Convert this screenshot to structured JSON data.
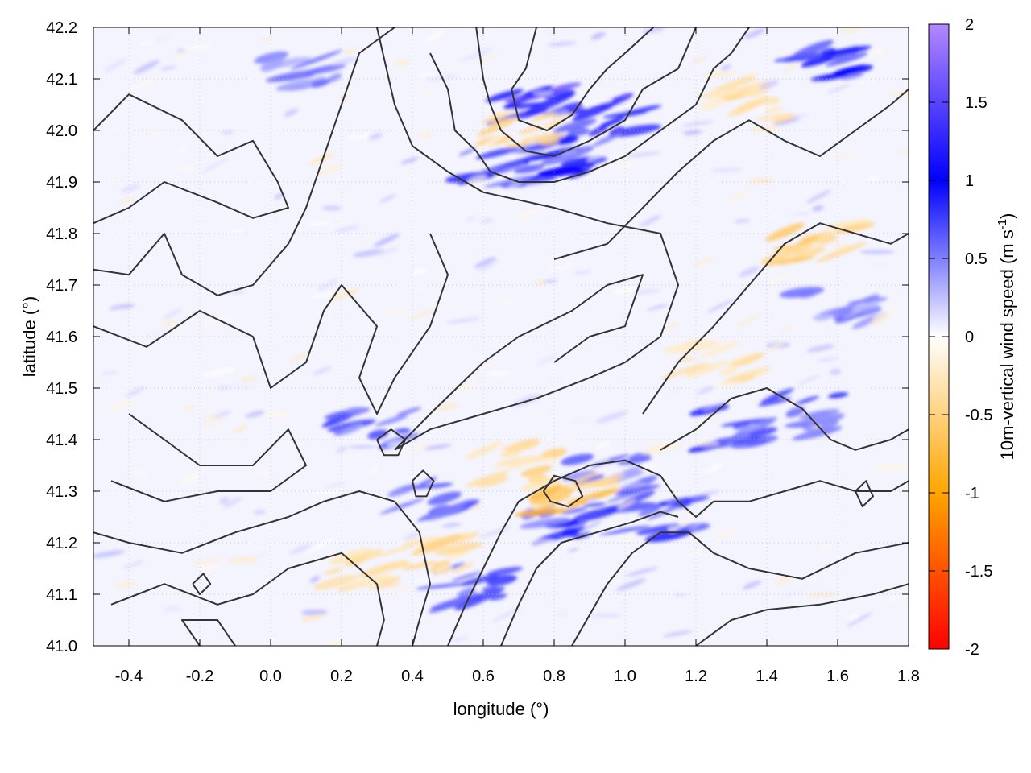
{
  "chart_data": {
    "type": "heatmap",
    "title": "",
    "xlabel": "longitude (°)",
    "ylabel": "latitude (°)",
    "xlim": [
      -0.5,
      1.8
    ],
    "ylim": [
      41.0,
      42.2
    ],
    "x_ticks": [
      -0.4,
      -0.2,
      0.0,
      0.2,
      0.4,
      0.6,
      0.8,
      1.0,
      1.2,
      1.4,
      1.6,
      1.8
    ],
    "x_tick_labels": [
      "-0.4",
      "-0.2",
      "0.0",
      "0.2",
      "0.4",
      "0.6",
      "0.8",
      "1.0",
      "1.2",
      "1.4",
      "1.6",
      "1.8"
    ],
    "y_ticks": [
      41.0,
      41.1,
      41.2,
      41.3,
      41.4,
      41.5,
      41.6,
      41.7,
      41.8,
      41.9,
      42.0,
      42.1,
      42.2
    ],
    "y_tick_labels": [
      "41.0",
      "41.1",
      "41.2",
      "41.3",
      "41.4",
      "41.5",
      "41.6",
      "41.7",
      "41.8",
      "41.9",
      "42.0",
      "42.1",
      "42.2"
    ],
    "grid": true,
    "colorbar": {
      "label": "10m-vertical wind speed (m s-1)",
      "label_text": "10m-vertical wind speed (m s",
      "label_sup": "-1",
      "label_end": ")",
      "range": [
        -2,
        2
      ],
      "ticks": [
        -2,
        -1.5,
        -1,
        -0.5,
        0,
        0.5,
        1,
        1.5,
        2
      ],
      "tick_labels": [
        "-2",
        "-1.5",
        "-1",
        "-0.5",
        "0",
        "0.5",
        "1",
        "1.5",
        "2"
      ],
      "stops": [
        {
          "value": -2,
          "color": "#ff0000"
        },
        {
          "value": -1,
          "color": "#ffa500"
        },
        {
          "value": 0,
          "color": "#ffffff"
        },
        {
          "value": 1,
          "color": "#0000ff"
        },
        {
          "value": 2,
          "color": "#b388ff"
        }
      ]
    },
    "contour_color": "#333333",
    "features": [
      {
        "type": "updraft",
        "lon": 0.75,
        "lat": 42.05,
        "value": 1.6
      },
      {
        "type": "updraft",
        "lon": 0.95,
        "lat": 42.03,
        "value": 1.3
      },
      {
        "type": "updraft",
        "lon": 0.65,
        "lat": 41.93,
        "value": 1.0
      },
      {
        "type": "updraft",
        "lon": 0.85,
        "lat": 41.95,
        "value": 1.1
      },
      {
        "type": "updraft",
        "lon": 1.55,
        "lat": 42.12,
        "value": 1.1
      },
      {
        "type": "updraft",
        "lon": 1.1,
        "lat": 41.25,
        "value": 1.1
      },
      {
        "type": "updraft",
        "lon": 1.3,
        "lat": 41.42,
        "value": 0.9
      },
      {
        "type": "updraft",
        "lon": 1.5,
        "lat": 41.45,
        "value": 0.9
      },
      {
        "type": "updraft",
        "lon": 0.82,
        "lat": 41.24,
        "value": 1.0
      },
      {
        "type": "updraft",
        "lon": 0.45,
        "lat": 41.28,
        "value": 0.8
      },
      {
        "type": "updraft",
        "lon": 0.58,
        "lat": 41.12,
        "value": 0.8
      },
      {
        "type": "updraft",
        "lon": 0.3,
        "lat": 41.42,
        "value": 0.8
      },
      {
        "type": "updraft",
        "lon": 1.6,
        "lat": 41.65,
        "value": 0.6
      },
      {
        "type": "updraft",
        "lon": 0.95,
        "lat": 41.33,
        "value": 0.7
      },
      {
        "type": "updraft",
        "lon": 0.1,
        "lat": 42.12,
        "value": 0.6
      },
      {
        "type": "downdraft",
        "lon": 0.85,
        "lat": 41.29,
        "value": -0.8
      },
      {
        "type": "downdraft",
        "lon": 0.7,
        "lat": 41.35,
        "value": -0.5
      },
      {
        "type": "downdraft",
        "lon": 0.45,
        "lat": 41.18,
        "value": -0.5
      },
      {
        "type": "downdraft",
        "lon": 1.55,
        "lat": 41.78,
        "value": -0.6
      },
      {
        "type": "downdraft",
        "lon": 1.25,
        "lat": 41.55,
        "value": -0.4
      },
      {
        "type": "downdraft",
        "lon": 0.7,
        "lat": 42.0,
        "value": -0.5
      },
      {
        "type": "downdraft",
        "lon": 1.35,
        "lat": 42.05,
        "value": -0.4
      },
      {
        "type": "downdraft",
        "lon": 0.25,
        "lat": 41.15,
        "value": -0.4
      }
    ],
    "contours": [
      [
        [
          -0.5,
          42.0
        ],
        [
          -0.4,
          42.07
        ],
        [
          -0.25,
          42.02
        ],
        [
          -0.15,
          41.95
        ],
        [
          -0.05,
          41.98
        ],
        [
          0.02,
          41.9
        ],
        [
          0.05,
          41.85
        ],
        [
          -0.05,
          41.83
        ],
        [
          -0.15,
          41.86
        ],
        [
          -0.3,
          41.9
        ],
        [
          -0.4,
          41.85
        ],
        [
          -0.5,
          41.82
        ]
      ],
      [
        [
          -0.5,
          41.73
        ],
        [
          -0.4,
          41.72
        ],
        [
          -0.3,
          41.8
        ],
        [
          -0.25,
          41.72
        ],
        [
          -0.15,
          41.68
        ],
        [
          -0.05,
          41.7
        ],
        [
          0.05,
          41.78
        ],
        [
          0.1,
          41.85
        ],
        [
          0.15,
          41.95
        ],
        [
          0.2,
          42.05
        ],
        [
          0.25,
          42.15
        ],
        [
          0.35,
          42.2
        ]
      ],
      [
        [
          -0.5,
          41.62
        ],
        [
          -0.35,
          41.58
        ],
        [
          -0.2,
          41.65
        ],
        [
          -0.05,
          41.6
        ],
        [
          0.0,
          41.5
        ],
        [
          0.1,
          41.55
        ],
        [
          0.15,
          41.65
        ],
        [
          0.2,
          41.7
        ],
        [
          0.3,
          41.62
        ],
        [
          0.25,
          41.52
        ],
        [
          0.3,
          41.45
        ],
        [
          0.35,
          41.52
        ],
        [
          0.45,
          41.62
        ],
        [
          0.5,
          41.72
        ],
        [
          0.45,
          41.8
        ]
      ],
      [
        [
          0.3,
          42.2
        ],
        [
          0.35,
          42.05
        ],
        [
          0.4,
          41.97
        ],
        [
          0.5,
          41.92
        ],
        [
          0.6,
          41.88
        ],
        [
          0.8,
          41.85
        ],
        [
          0.95,
          41.82
        ],
        [
          1.1,
          41.8
        ],
        [
          1.15,
          41.7
        ],
        [
          1.1,
          41.6
        ],
        [
          1.0,
          41.55
        ],
        [
          0.9,
          41.52
        ],
        [
          0.75,
          41.48
        ],
        [
          0.6,
          41.45
        ],
        [
          0.45,
          41.42
        ],
        [
          0.35,
          41.38
        ]
      ],
      [
        [
          0.35,
          41.38
        ],
        [
          0.45,
          41.45
        ],
        [
          0.6,
          41.55
        ],
        [
          0.7,
          41.6
        ],
        [
          0.85,
          41.65
        ],
        [
          0.95,
          41.7
        ],
        [
          1.05,
          41.72
        ],
        [
          1.0,
          41.62
        ],
        [
          0.9,
          41.6
        ],
        [
          0.8,
          41.55
        ]
      ],
      [
        [
          -0.4,
          41.45
        ],
        [
          -0.3,
          41.4
        ],
        [
          -0.2,
          41.35
        ],
        [
          -0.05,
          41.35
        ],
        [
          0.05,
          41.42
        ],
        [
          0.1,
          41.35
        ],
        [
          0.0,
          41.3
        ],
        [
          -0.15,
          41.3
        ],
        [
          -0.3,
          41.28
        ],
        [
          -0.45,
          41.32
        ]
      ],
      [
        [
          -0.5,
          41.22
        ],
        [
          -0.4,
          41.2
        ],
        [
          -0.25,
          41.18
        ],
        [
          -0.1,
          41.22
        ],
        [
          0.05,
          41.25
        ],
        [
          0.15,
          41.28
        ],
        [
          0.25,
          41.3
        ],
        [
          0.35,
          41.28
        ],
        [
          0.42,
          41.22
        ],
        [
          0.45,
          41.12
        ],
        [
          0.42,
          41.05
        ],
        [
          0.4,
          41.0
        ]
      ],
      [
        [
          -0.45,
          41.08
        ],
        [
          -0.3,
          41.12
        ],
        [
          -0.15,
          41.08
        ],
        [
          -0.05,
          41.1
        ],
        [
          0.05,
          41.15
        ],
        [
          0.2,
          41.18
        ],
        [
          0.3,
          41.12
        ],
        [
          0.32,
          41.05
        ],
        [
          0.3,
          41.0
        ]
      ],
      [
        [
          -0.2,
          41.0
        ],
        [
          -0.25,
          41.05
        ],
        [
          -0.15,
          41.05
        ],
        [
          -0.1,
          41.0
        ]
      ],
      [
        [
          0.5,
          41.0
        ],
        [
          0.55,
          41.08
        ],
        [
          0.6,
          41.15
        ],
        [
          0.65,
          41.22
        ],
        [
          0.7,
          41.28
        ],
        [
          0.8,
          41.32
        ],
        [
          0.9,
          41.35
        ],
        [
          1.0,
          41.36
        ],
        [
          1.1,
          41.33
        ],
        [
          1.15,
          41.28
        ],
        [
          1.2,
          41.25
        ],
        [
          1.25,
          41.28
        ],
        [
          1.35,
          41.28
        ],
        [
          1.45,
          41.3
        ],
        [
          1.55,
          41.32
        ],
        [
          1.65,
          41.3
        ],
        [
          1.75,
          41.3
        ],
        [
          1.8,
          41.32
        ]
      ],
      [
        [
          0.65,
          41.0
        ],
        [
          0.7,
          41.08
        ],
        [
          0.75,
          41.15
        ],
        [
          0.82,
          41.2
        ],
        [
          0.92,
          41.22
        ],
        [
          1.02,
          41.24
        ],
        [
          1.1,
          41.26
        ],
        [
          1.15,
          41.25
        ]
      ],
      [
        [
          0.85,
          41.0
        ],
        [
          0.9,
          41.06
        ],
        [
          0.95,
          41.12
        ],
        [
          1.02,
          41.18
        ],
        [
          1.1,
          41.22
        ],
        [
          1.18,
          41.22
        ],
        [
          1.25,
          41.18
        ],
        [
          1.35,
          41.15
        ],
        [
          1.5,
          41.13
        ],
        [
          1.65,
          41.18
        ],
        [
          1.8,
          41.2
        ]
      ],
      [
        [
          1.2,
          41.0
        ],
        [
          1.3,
          41.05
        ],
        [
          1.4,
          41.07
        ],
        [
          1.55,
          41.08
        ],
        [
          1.7,
          41.1
        ],
        [
          1.8,
          41.12
        ]
      ],
      [
        [
          1.05,
          41.45
        ],
        [
          1.15,
          41.55
        ],
        [
          1.25,
          41.62
        ],
        [
          1.35,
          41.7
        ],
        [
          1.45,
          41.78
        ],
        [
          1.55,
          41.82
        ],
        [
          1.65,
          41.8
        ],
        [
          1.75,
          41.78
        ],
        [
          1.8,
          41.8
        ]
      ],
      [
        [
          1.1,
          41.38
        ],
        [
          1.2,
          41.42
        ],
        [
          1.3,
          41.48
        ],
        [
          1.4,
          41.5
        ],
        [
          1.5,
          41.46
        ],
        [
          1.58,
          41.4
        ],
        [
          1.65,
          41.38
        ],
        [
          1.75,
          41.4
        ],
        [
          1.8,
          41.42
        ]
      ],
      [
        [
          0.8,
          41.75
        ],
        [
          0.95,
          41.78
        ],
        [
          1.05,
          41.85
        ],
        [
          1.15,
          41.92
        ],
        [
          1.25,
          41.98
        ],
        [
          1.35,
          42.02
        ],
        [
          1.45,
          41.98
        ],
        [
          1.55,
          41.95
        ],
        [
          1.65,
          42.0
        ],
        [
          1.75,
          42.05
        ],
        [
          1.8,
          42.08
        ]
      ],
      [
        [
          0.75,
          42.2
        ],
        [
          0.72,
          42.12
        ],
        [
          0.68,
          42.08
        ],
        [
          0.7,
          42.02
        ],
        [
          0.78,
          42.0
        ],
        [
          0.85,
          42.03
        ],
        [
          0.9,
          42.08
        ],
        [
          0.95,
          42.12
        ],
        [
          1.0,
          42.15
        ],
        [
          1.08,
          42.2
        ]
      ],
      [
        [
          0.58,
          42.2
        ],
        [
          0.6,
          42.1
        ],
        [
          0.62,
          42.05
        ],
        [
          0.65,
          42.0
        ],
        [
          0.72,
          41.96
        ],
        [
          0.8,
          41.95
        ],
        [
          0.9,
          41.98
        ],
        [
          1.0,
          42.02
        ],
        [
          1.05,
          42.08
        ],
        [
          1.15,
          42.12
        ],
        [
          1.2,
          42.2
        ]
      ],
      [
        [
          0.45,
          42.15
        ],
        [
          0.5,
          42.08
        ],
        [
          0.52,
          42.0
        ],
        [
          0.58,
          41.96
        ],
        [
          0.62,
          41.92
        ],
        [
          0.7,
          41.9
        ],
        [
          0.8,
          41.9
        ],
        [
          0.9,
          41.92
        ],
        [
          1.0,
          41.95
        ],
        [
          1.1,
          42.0
        ],
        [
          1.2,
          42.05
        ],
        [
          1.25,
          42.12
        ],
        [
          1.3,
          42.15
        ],
        [
          1.35,
          42.2
        ]
      ],
      [
        [
          0.77,
          41.3
        ],
        [
          0.8,
          41.33
        ],
        [
          0.86,
          41.32
        ],
        [
          0.88,
          41.29
        ],
        [
          0.84,
          41.27
        ],
        [
          0.79,
          41.28
        ],
        [
          0.77,
          41.3
        ]
      ],
      [
        [
          0.4,
          41.32
        ],
        [
          0.43,
          41.34
        ],
        [
          0.46,
          41.32
        ],
        [
          0.44,
          41.29
        ],
        [
          0.41,
          41.29
        ],
        [
          0.4,
          41.32
        ]
      ],
      [
        [
          0.3,
          41.4
        ],
        [
          0.34,
          41.42
        ],
        [
          0.38,
          41.4
        ],
        [
          0.36,
          41.37
        ],
        [
          0.32,
          41.37
        ],
        [
          0.3,
          41.4
        ]
      ],
      [
        [
          1.65,
          41.3
        ],
        [
          1.68,
          41.32
        ],
        [
          1.7,
          41.29
        ],
        [
          1.67,
          41.27
        ],
        [
          1.65,
          41.3
        ]
      ],
      [
        [
          -0.22,
          41.12
        ],
        [
          -0.19,
          41.14
        ],
        [
          -0.17,
          41.12
        ],
        [
          -0.2,
          41.1
        ],
        [
          -0.22,
          41.12
        ]
      ]
    ]
  }
}
